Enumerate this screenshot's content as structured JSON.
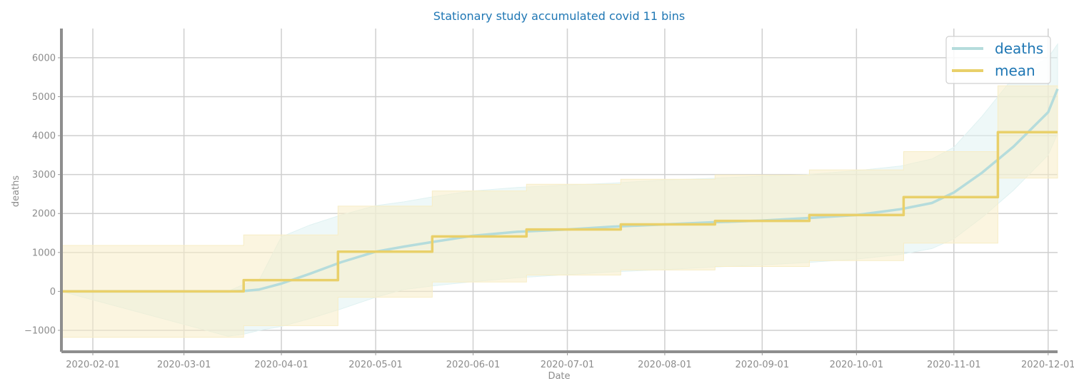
{
  "chart_data": {
    "type": "line",
    "title": "Stationary study accumulated covid 11 bins",
    "xlabel": "Date",
    "ylabel": "deaths",
    "xlim": [
      "2020-01-22",
      "2020-12-04"
    ],
    "ylim": [
      -1550,
      6750
    ],
    "grid": true,
    "legend_position": "top-right",
    "x_ticks": [
      "2020-02-01",
      "2020-03-01",
      "2020-04-01",
      "2020-05-01",
      "2020-06-01",
      "2020-07-01",
      "2020-08-01",
      "2020-09-01",
      "2020-10-01",
      "2020-11-01",
      "2020-12-01"
    ],
    "y_ticks": [
      -1000,
      0,
      1000,
      2000,
      3000,
      4000,
      5000,
      6000
    ],
    "y_tick_labels": [
      "−1000",
      "0",
      "1000",
      "2000",
      "3000",
      "4000",
      "5000",
      "6000"
    ],
    "series": [
      {
        "name": "deaths",
        "color": "#b5dcdc",
        "band_color": "#e0f2f2",
        "x": [
          "2020-01-22",
          "2020-03-15",
          "2020-03-20",
          "2020-03-25",
          "2020-04-01",
          "2020-04-10",
          "2020-04-20",
          "2020-05-01",
          "2020-05-10",
          "2020-05-20",
          "2020-06-01",
          "2020-06-15",
          "2020-07-01",
          "2020-07-15",
          "2020-08-01",
          "2020-08-15",
          "2020-09-01",
          "2020-09-15",
          "2020-10-01",
          "2020-10-15",
          "2020-10-25",
          "2020-11-01",
          "2020-11-10",
          "2020-11-20",
          "2020-12-01",
          "2020-12-04"
        ],
        "values": [
          0,
          0,
          10,
          50,
          200,
          450,
          750,
          1020,
          1150,
          1280,
          1430,
          1530,
          1590,
          1660,
          1720,
          1770,
          1820,
          1880,
          1960,
          2110,
          2270,
          2540,
          3050,
          3720,
          4600,
          5200
        ],
        "band_upper": [
          0,
          0,
          180,
          300,
          1400,
          1700,
          1960,
          2200,
          2300,
          2440,
          2580,
          2670,
          2730,
          2780,
          2860,
          2900,
          2960,
          3000,
          3100,
          3220,
          3400,
          3700,
          4500,
          5500,
          6000,
          6350
        ],
        "band_lower": [
          0,
          -1150,
          -1100,
          -1000,
          -900,
          -700,
          -450,
          -150,
          50,
          150,
          250,
          350,
          430,
          500,
          560,
          620,
          680,
          740,
          830,
          950,
          1100,
          1350,
          1900,
          2600,
          3500,
          4050
        ]
      },
      {
        "name": "mean",
        "color": "#e9d06a",
        "band_color": "#f7edc6",
        "step": true,
        "x": [
          "2020-01-22",
          "2020-03-20",
          "2020-04-19",
          "2020-05-19",
          "2020-06-18",
          "2020-07-18",
          "2020-08-17",
          "2020-09-16",
          "2020-10-16",
          "2020-11-15",
          "2020-12-04"
        ],
        "values": [
          0,
          290,
          1020,
          1410,
          1590,
          1720,
          1810,
          1960,
          2420,
          4090,
          4090
        ],
        "band_upper": [
          1180,
          1450,
          2190,
          2580,
          2750,
          2880,
          2990,
          3120,
          3590,
          5280,
          5280
        ],
        "band_lower": [
          -1180,
          -880,
          -150,
          240,
          420,
          550,
          640,
          790,
          1240,
          2910,
          2910
        ]
      }
    ]
  }
}
